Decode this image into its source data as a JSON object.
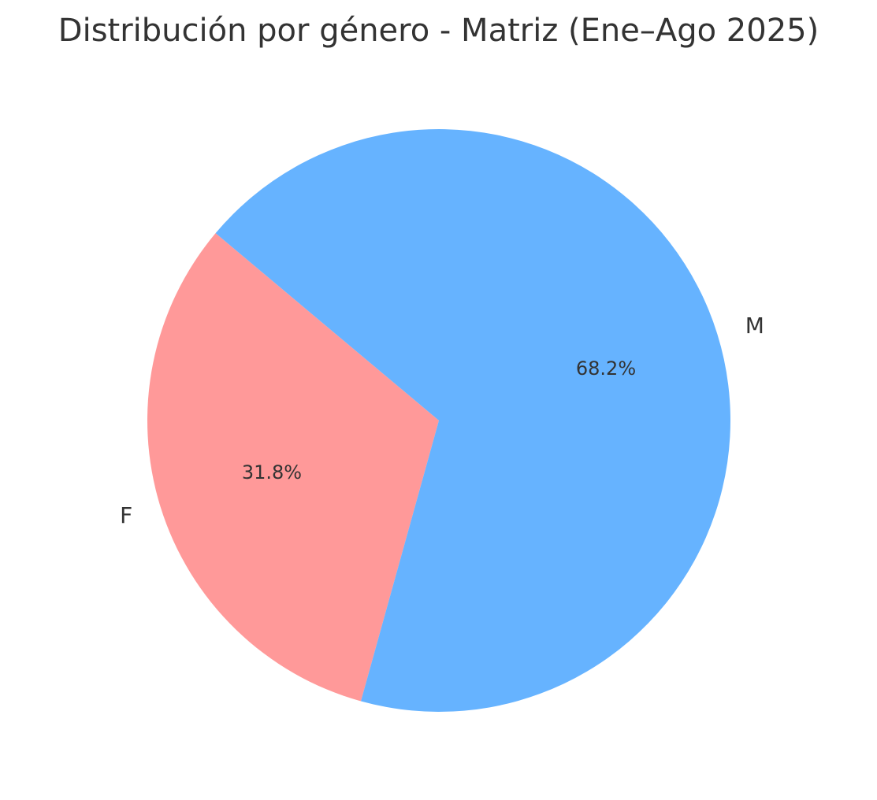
{
  "chart_data": {
    "type": "pie",
    "title": "Distribución por género - Matriz (Ene–Ago 2025)",
    "slices": [
      {
        "label": "F",
        "value": 31.8,
        "pct_label": "31.8%",
        "color": "#ff9999"
      },
      {
        "label": "M",
        "value": 68.2,
        "pct_label": "68.2%",
        "color": "#66b3ff"
      }
    ],
    "start_angle_deg": 140,
    "direction": "counterclockwise",
    "legend": "none"
  }
}
